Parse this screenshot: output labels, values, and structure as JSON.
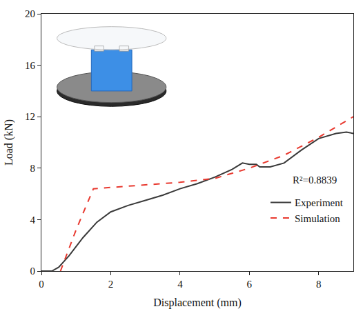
{
  "chart_data": {
    "type": "line",
    "x_label": "Displacement (mm)",
    "y_label": "Load (kN)",
    "xlim": [
      0,
      9
    ],
    "xticks": [
      0,
      2,
      4,
      6,
      8
    ],
    "ylim": [
      0,
      20
    ],
    "yticks": [
      0,
      4,
      8,
      12,
      16,
      20
    ],
    "grid": false,
    "legend": "lower right",
    "annotations": [
      "R²=0.8839"
    ],
    "series": [
      {
        "name": "Experiment",
        "color": "#3a3a3a",
        "line_style": "solid",
        "x": [
          0,
          0.3,
          0.5,
          0.8,
          1.2,
          1.6,
          2.0,
          2.5,
          3.0,
          3.5,
          4.0,
          4.5,
          5.0,
          5.5,
          5.8,
          6.0,
          6.2,
          6.3,
          6.6,
          7.0,
          7.5,
          8.0,
          8.5,
          8.8,
          9.0
        ],
        "values": [
          0,
          0,
          0.3,
          1.2,
          2.6,
          3.8,
          4.6,
          5.1,
          5.5,
          5.9,
          6.4,
          6.8,
          7.3,
          7.9,
          8.4,
          8.3,
          8.3,
          8.1,
          8.1,
          8.4,
          9.4,
          10.3,
          10.7,
          10.8,
          10.7
        ]
      },
      {
        "name": "Simulation",
        "color": "#e8392f",
        "line_style": "dash",
        "x": [
          0.55,
          1.0,
          1.5,
          2.0,
          3.0,
          4.0,
          5.0,
          6.0,
          7.0,
          8.0,
          9.0
        ],
        "values": [
          0,
          3.2,
          6.4,
          6.5,
          6.7,
          6.9,
          7.2,
          8.0,
          9.0,
          10.4,
          12.0
        ]
      }
    ]
  }
}
